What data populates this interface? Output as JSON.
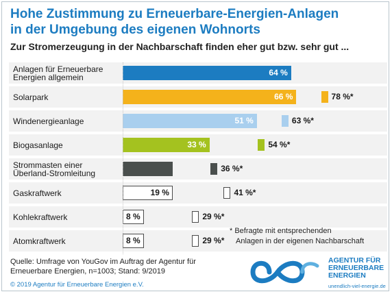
{
  "title_lines": [
    "Hohe Zustimmung zu Erneuerbare-Energien-Anlagen",
    "in der Umgebung des eigenen Wohnorts"
  ],
  "subtitle": "Zur Stromerzeugung in der Nachbarschaft finden eher gut bzw. sehr gut ...",
  "chart_data": {
    "type": "bar",
    "orientation": "horizontal",
    "title": "Hohe Zustimmung zu Erneuerbare-Energien-Anlagen in der Umgebung des eigenen Wohnorts",
    "subtitle": "Zur Stromerzeugung in der Nachbarschaft finden eher gut bzw. sehr gut ...",
    "xlim": [
      0,
      100
    ],
    "grid": false,
    "unit": "%",
    "categories": [
      [
        "Anlagen für Erneuerbare",
        "Energien allgemein"
      ],
      [
        "Solarpark"
      ],
      [
        "Windenergieanlage"
      ],
      [
        "Biogasanlage"
      ],
      [
        "Strommasten einer",
        "Überland-Stromleitung"
      ],
      [
        "Gaskraftwerk"
      ],
      [
        "Kohlekraftwerk"
      ],
      [
        "Atomkraftwerk"
      ]
    ],
    "series": [
      {
        "values": [
          64,
          66,
          51,
          33,
          19,
          19,
          8,
          8
        ],
        "labels": [
          "64 %",
          "66 %",
          "51 %",
          "33 %",
          "",
          "19 %",
          "8 %",
          "8 %"
        ]
      },
      {
        "values": [
          null,
          78,
          63,
          54,
          36,
          41,
          29,
          29
        ],
        "labels": [
          "",
          "78 %*",
          "63 %*",
          "54 %*",
          "36 %*",
          "41 %*",
          "29 %*",
          "29 %*"
        ]
      }
    ],
    "colors": [
      "#1c7cc1",
      "#f4b21b",
      "#a9cfee",
      "#a4c21f",
      "#4a4f4d",
      "#ffffff",
      "#ffffff",
      "#ffffff"
    ],
    "outlined": [
      false,
      false,
      false,
      false,
      false,
      true,
      true,
      true
    ]
  },
  "footnote_lines": [
    "* Befragte mit entsprechenden",
    "Anlagen in der eigenen Nachbarschaft"
  ],
  "source_lines": [
    "Quelle: Umfrage von YouGov im Auftrag der Agentur für",
    "Erneuerbare Energien, n=1003; Stand: 9/2019"
  ],
  "copyright": "© 2019 Agentur für Erneuerbare Energien e.V.",
  "logo": {
    "icon": "infinity-logo",
    "lines": [
      "AGENTUR FÜR",
      "ERNEUERBARE",
      "ENERGIEN"
    ],
    "url": "unendlich-viel-energie.de",
    "color": "#1c7cc1"
  }
}
